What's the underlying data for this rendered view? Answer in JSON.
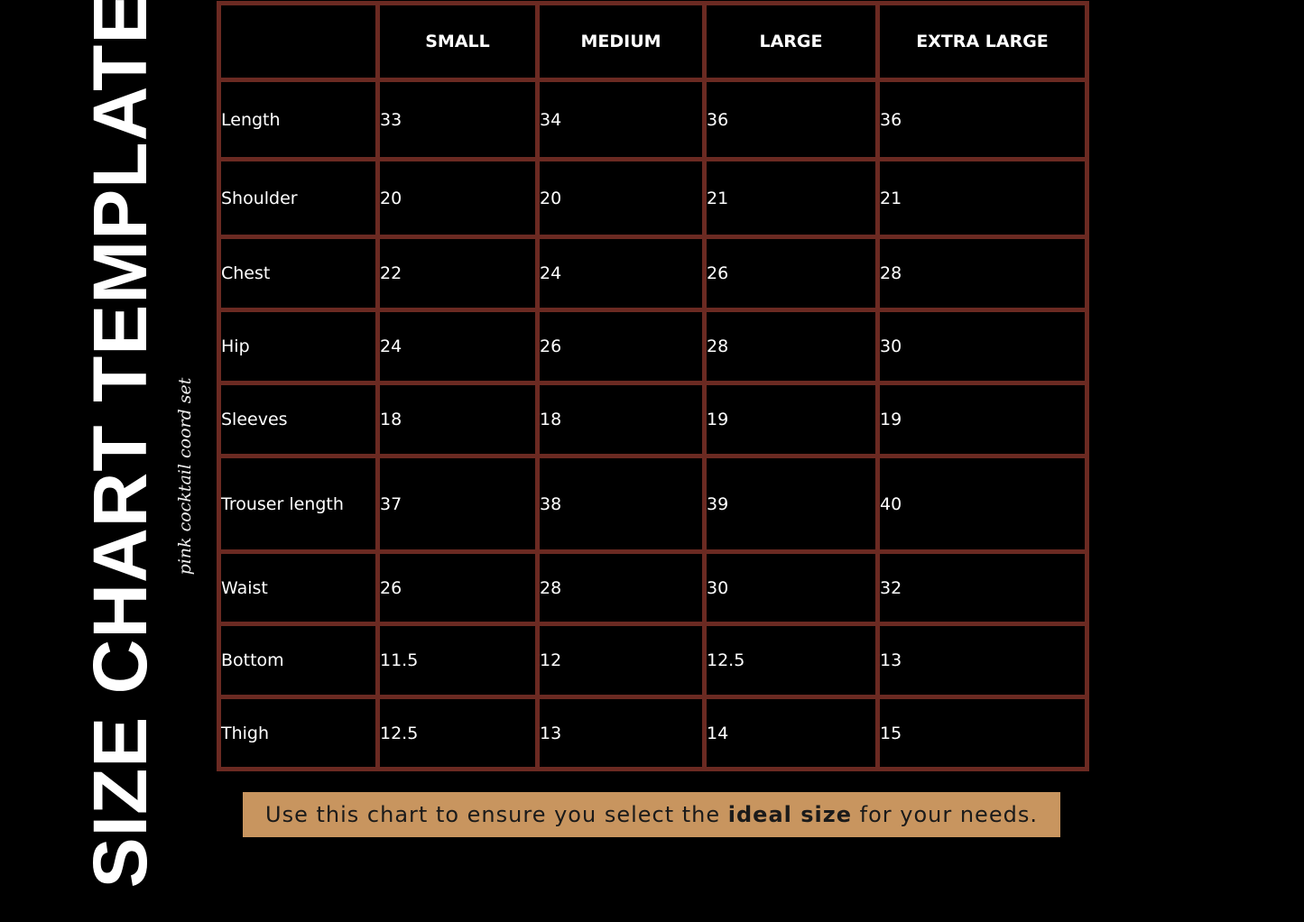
{
  "title": "SIZE CHART TEMPLATE",
  "subtitle": "pink cocktail coord set",
  "colors": {
    "border": "#6b2a22",
    "banner": "#c8955f",
    "background": "#000000"
  },
  "table": {
    "headers": [
      "",
      "SMALL",
      "MEDIUM",
      "LARGE",
      "EXTRA LARGE"
    ],
    "rows": [
      {
        "label": "Length",
        "values": [
          "33",
          "34",
          "36",
          "36"
        ]
      },
      {
        "label": "Shoulder",
        "values": [
          "20",
          "20",
          "21",
          "21"
        ]
      },
      {
        "label": "Chest",
        "values": [
          "22",
          "24",
          "26",
          "28"
        ]
      },
      {
        "label": "Hip",
        "values": [
          "24",
          "26",
          "28",
          "30"
        ]
      },
      {
        "label": "Sleeves",
        "values": [
          "18",
          "18",
          "19",
          "19"
        ]
      },
      {
        "label": "Trouser length",
        "values": [
          "37",
          "38",
          "39",
          "40"
        ]
      },
      {
        "label": "Waist",
        "values": [
          "26",
          "28",
          "30",
          "32"
        ]
      },
      {
        "label": "Bottom",
        "values": [
          "11.5",
          "12",
          "12.5",
          "13"
        ]
      },
      {
        "label": "Thigh",
        "values": [
          "12.5",
          "13",
          "14",
          "15"
        ]
      }
    ]
  },
  "banner": {
    "before": "Use this chart to ensure you select the ",
    "bold": "ideal size",
    "after": " for your needs."
  }
}
